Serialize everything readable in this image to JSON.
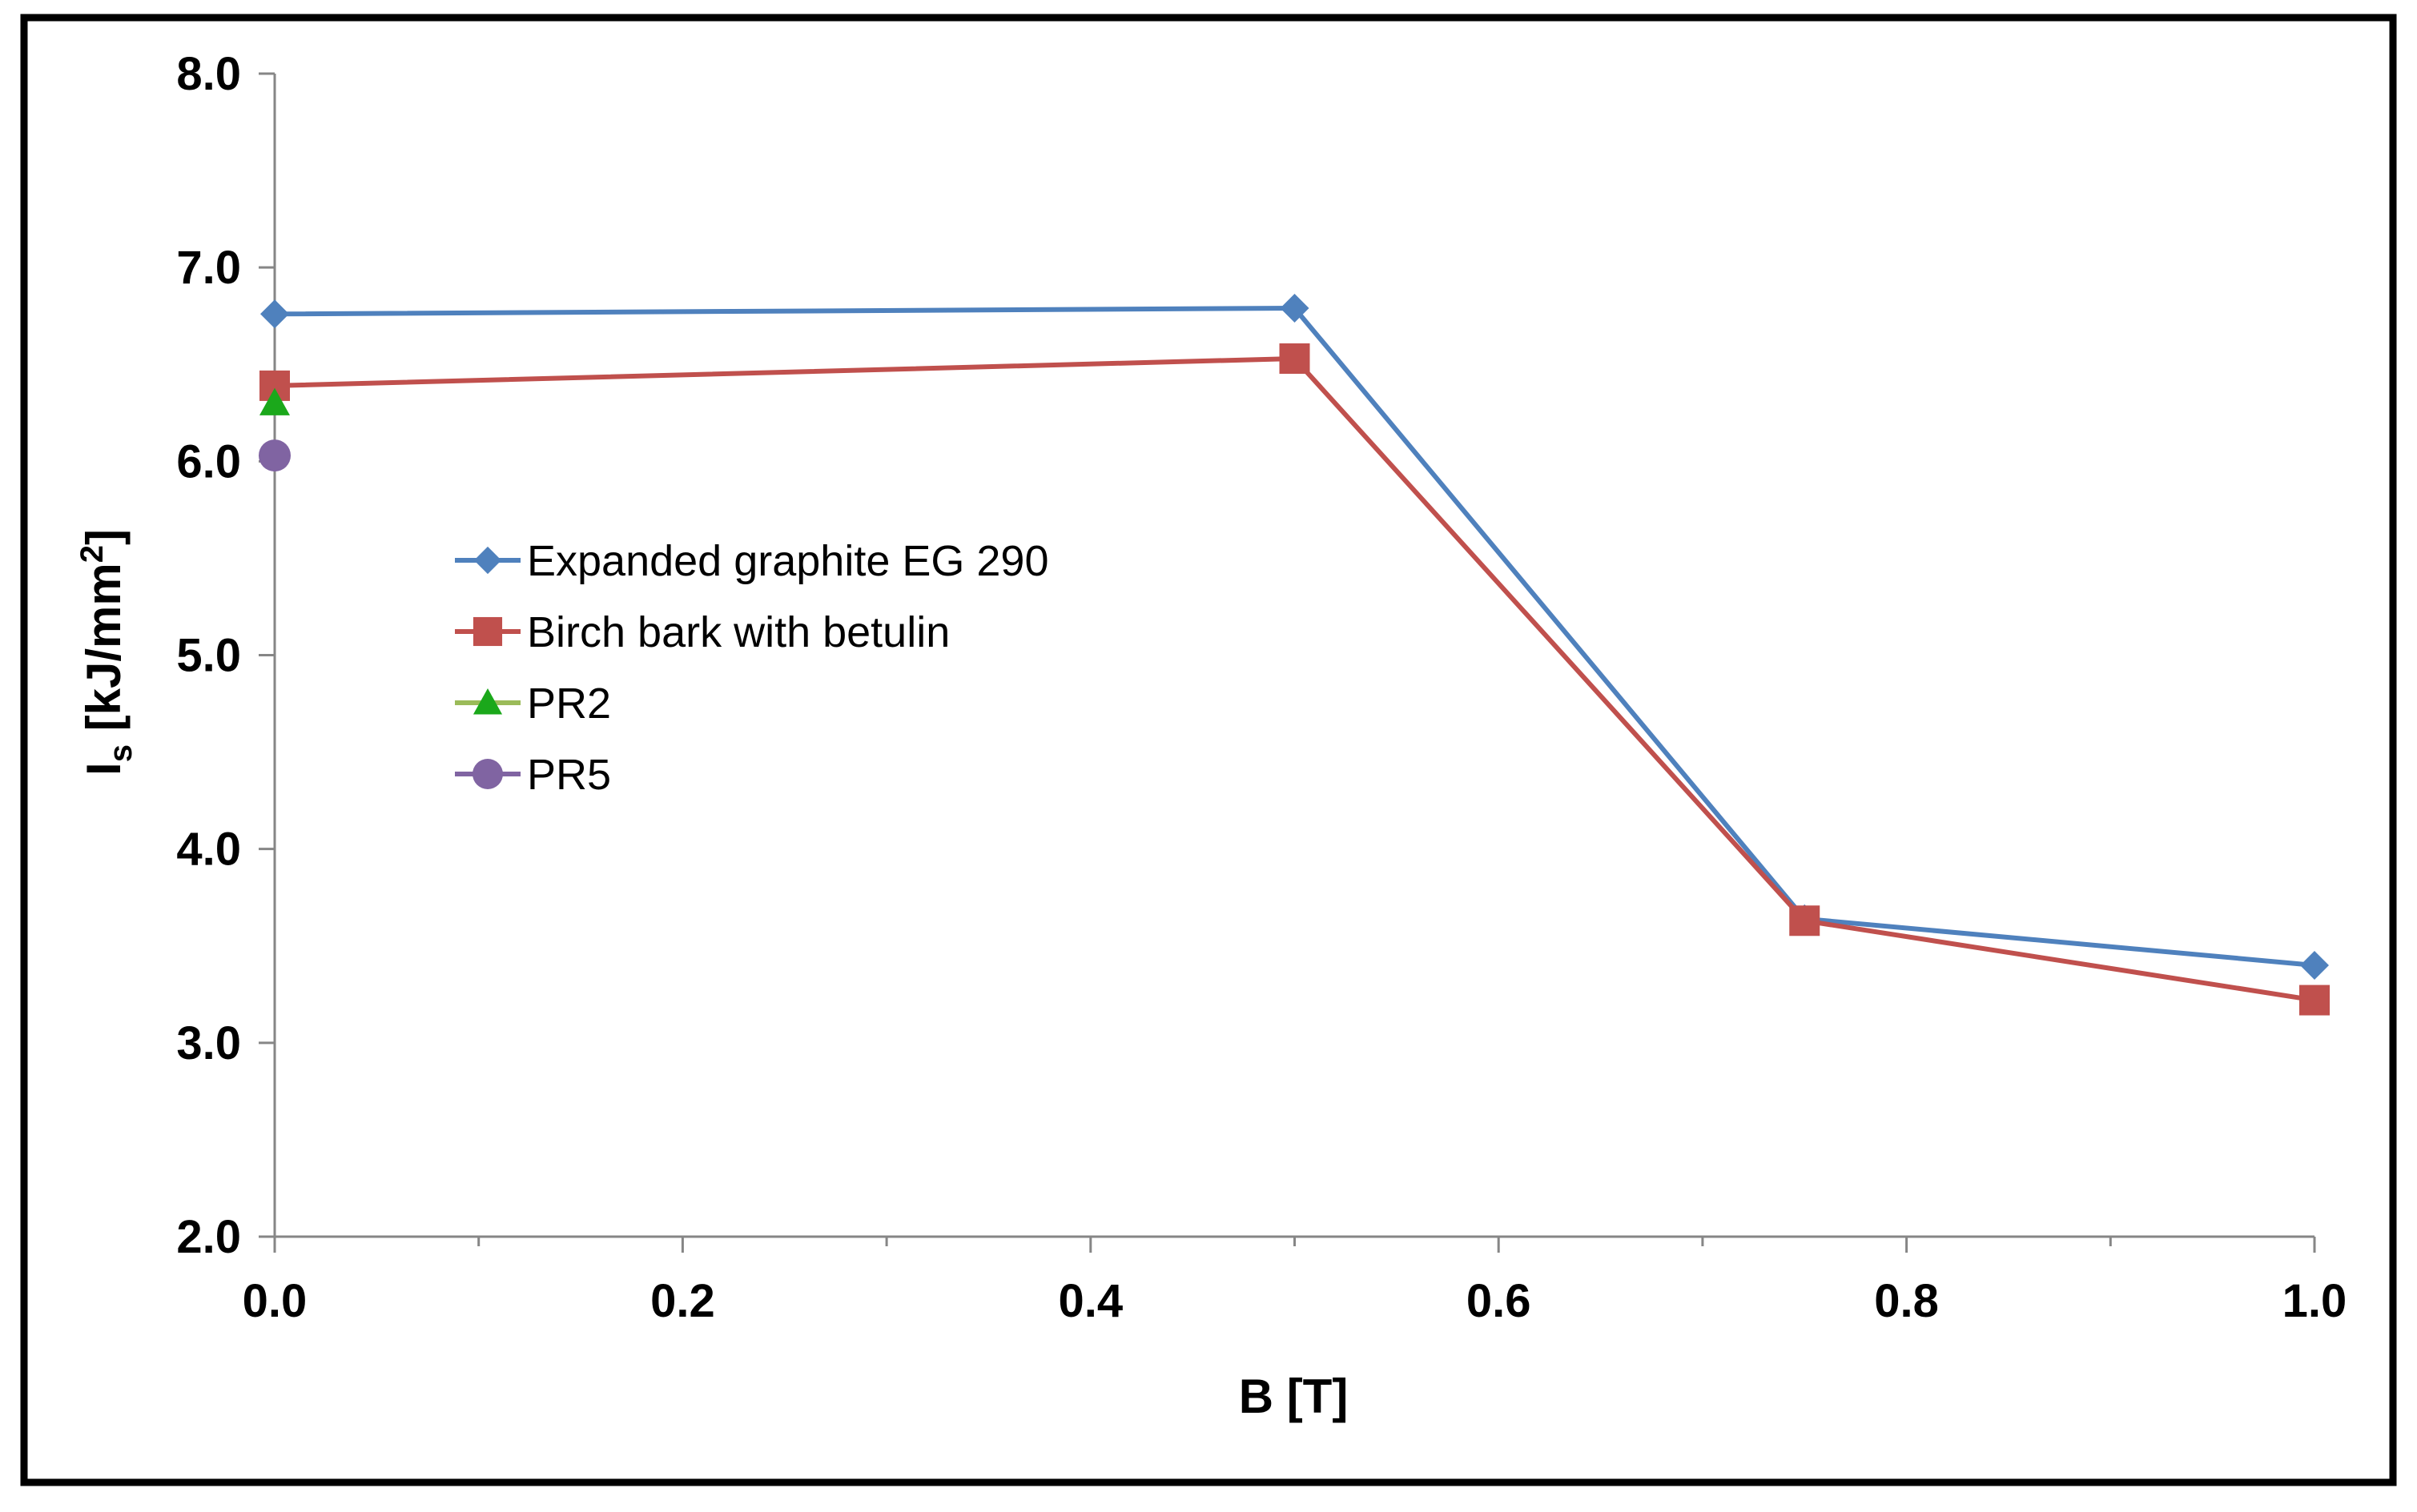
{
  "chart_data": {
    "type": "line",
    "title": "",
    "xlabel": "B [T]",
    "ylabel": {
      "main": "I",
      "subscript": "s",
      "units_prefix": " [kJ/mm",
      "units_superscript": "2",
      "units_suffix": "]"
    },
    "xlim": [
      0.0,
      1.0
    ],
    "ylim": [
      2.0,
      8.0
    ],
    "xticks": [
      0.0,
      0.2,
      0.4,
      0.6,
      0.8,
      1.0
    ],
    "xtick_labels": [
      "0.0",
      "0.2",
      "0.4",
      "0.6",
      "0.8",
      "1.0"
    ],
    "yticks": [
      2.0,
      3.0,
      4.0,
      5.0,
      6.0,
      7.0,
      8.0
    ],
    "ytick_labels": [
      "2.0",
      "3.0",
      "4.0",
      "5.0",
      "6.0",
      "7.0",
      "8.0"
    ],
    "grid": false,
    "legend_position": "center-left",
    "series": [
      {
        "name": "Expanded graphite EG 290",
        "color": "#4F81BD",
        "marker": "diamond",
        "points": [
          [
            0.0,
            6.76
          ],
          [
            0.5,
            6.79
          ],
          [
            0.75,
            3.64
          ],
          [
            1.0,
            3.4
          ]
        ]
      },
      {
        "name": "Birch bark with betulin",
        "color": "#C0504D",
        "marker": "square",
        "points": [
          [
            0.0,
            6.39
          ],
          [
            0.5,
            6.53
          ],
          [
            0.75,
            3.63
          ],
          [
            1.0,
            3.22
          ]
        ]
      },
      {
        "name": "PR2",
        "color": "#9BBB59",
        "marker_color": "#1BA81B",
        "marker": "triangle",
        "points": [
          [
            0.0,
            6.3
          ]
        ]
      },
      {
        "name": "PR5",
        "color": "#8064A2",
        "marker": "circle",
        "points": [
          [
            0.0,
            6.03
          ]
        ]
      }
    ]
  }
}
